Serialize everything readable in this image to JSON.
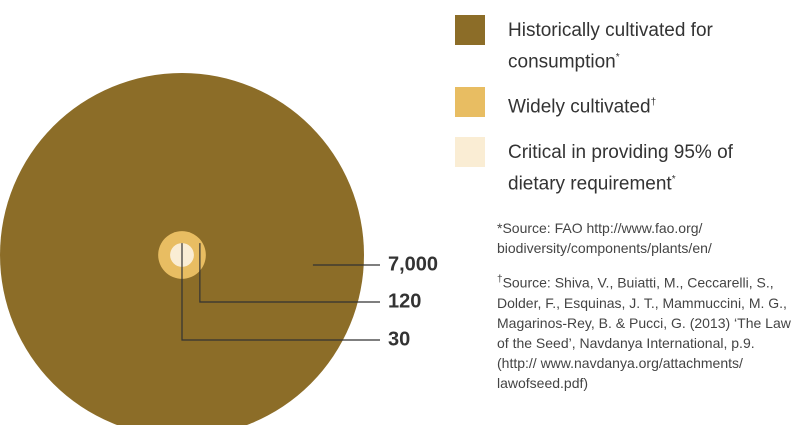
{
  "chart_data": {
    "type": "nested-circle",
    "categories": [
      "Historically cultivated for consumption",
      "Widely cultivated",
      "Critical in providing 95% of dietary requirement"
    ],
    "markers": [
      "*",
      "†",
      "*"
    ],
    "values": [
      7000,
      120,
      30
    ],
    "value_labels": [
      "7,000",
      "120",
      "30"
    ],
    "colors": [
      "#8c6d28",
      "#e8bd62",
      "#faedd4"
    ],
    "footnotes": [
      {
        "mark": "*",
        "text": "Source: FAO http://www.fao.org/ biodiversity/components/plants/en/"
      },
      {
        "mark": "†",
        "text": "Source: Shiva, V., Buiatti, M., Ceccarelli, S., Dolder, F., Esquinas, J. T., Mammuccini, M. G., Magarinos-Rey, B. & Pucci, G. (2013) ‘The Law of the Seed’, Navdanya International, p.9. (http:// www.navdanya.org/attachments/ lawofseed.pdf)"
      }
    ]
  }
}
